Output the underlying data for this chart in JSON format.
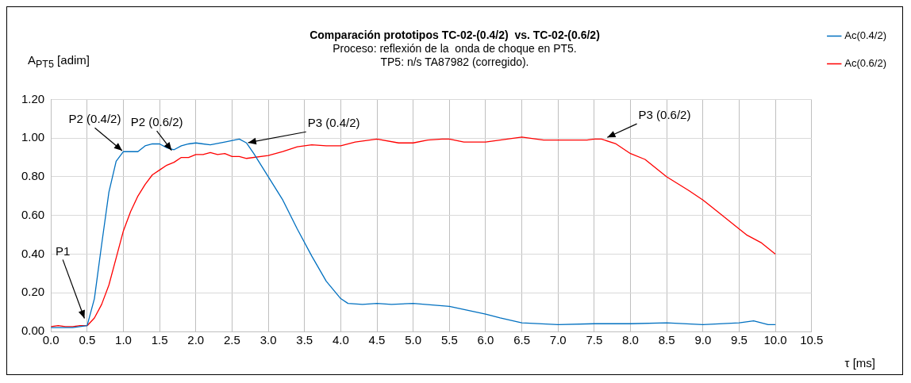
{
  "chart_data": {
    "type": "line",
    "title": "Comparación prototipos TC-02-(0.4/2)  vs. TC-02-(0.6/2)",
    "subtitle": "Proceso: reflexión de la  onda de choque en PT5.\nTP5: n/s TA87982 (corregido).",
    "xlabel": "τ [ms]",
    "ylabel": "A$_{PT5}$ [adim]",
    "series": [
      {
        "name": "Ac(0.4/2)",
        "color": "#0070c0",
        "x": [
          0,
          0.1,
          0.2,
          0.3,
          0.4,
          0.5,
          0.6,
          0.7,
          0.8,
          0.9,
          1.0,
          1.1,
          1.2,
          1.3,
          1.4,
          1.5,
          1.6,
          1.7,
          1.8,
          1.9,
          2.0,
          2.2,
          2.4,
          2.6,
          2.7,
          2.8,
          3.0,
          3.2,
          3.4,
          3.6,
          3.8,
          4.0,
          4.1,
          4.3,
          4.5,
          4.7,
          5.0,
          5.5,
          6.0,
          6.2,
          6.5,
          7.0,
          7.5,
          8.0,
          8.5,
          9.0,
          9.5,
          9.7,
          9.9,
          10.0
        ],
        "values": [
          0.02,
          0.02,
          0.02,
          0.02,
          0.025,
          0.03,
          0.17,
          0.45,
          0.72,
          0.88,
          0.93,
          0.93,
          0.93,
          0.96,
          0.97,
          0.97,
          0.95,
          0.94,
          0.96,
          0.97,
          0.975,
          0.965,
          0.98,
          0.995,
          0.975,
          0.92,
          0.8,
          0.68,
          0.53,
          0.39,
          0.26,
          0.17,
          0.145,
          0.14,
          0.145,
          0.14,
          0.145,
          0.13,
          0.09,
          0.07,
          0.045,
          0.035,
          0.04,
          0.04,
          0.045,
          0.035,
          0.045,
          0.055,
          0.035,
          0.035
        ]
      },
      {
        "name": "Ac(0.6/2)",
        "color": "#ff0000",
        "x": [
          0,
          0.1,
          0.2,
          0.3,
          0.4,
          0.5,
          0.6,
          0.7,
          0.8,
          0.9,
          1.0,
          1.1,
          1.2,
          1.3,
          1.4,
          1.5,
          1.6,
          1.7,
          1.8,
          1.9,
          2.0,
          2.1,
          2.2,
          2.3,
          2.4,
          2.5,
          2.6,
          2.7,
          3.0,
          3.2,
          3.4,
          3.6,
          3.8,
          4.0,
          4.2,
          4.5,
          4.8,
          5.0,
          5.2,
          5.4,
          5.5,
          5.7,
          6.0,
          6.2,
          6.5,
          6.8,
          7.0,
          7.4,
          7.5,
          7.6,
          7.8,
          8.0,
          8.2,
          8.5,
          8.8,
          9.0,
          9.2,
          9.5,
          9.6,
          9.8,
          10.0
        ],
        "values": [
          0.025,
          0.03,
          0.025,
          0.025,
          0.03,
          0.03,
          0.07,
          0.14,
          0.24,
          0.38,
          0.52,
          0.62,
          0.7,
          0.76,
          0.81,
          0.835,
          0.86,
          0.875,
          0.9,
          0.9,
          0.915,
          0.915,
          0.925,
          0.915,
          0.92,
          0.905,
          0.905,
          0.895,
          0.91,
          0.93,
          0.955,
          0.965,
          0.96,
          0.96,
          0.98,
          0.995,
          0.975,
          0.975,
          0.99,
          0.995,
          0.995,
          0.98,
          0.98,
          0.99,
          1.005,
          0.99,
          0.99,
          0.99,
          0.995,
          0.995,
          0.97,
          0.92,
          0.89,
          0.8,
          0.73,
          0.68,
          0.62,
          0.53,
          0.5,
          0.46,
          0.4
        ]
      }
    ],
    "xlim": [
      0,
      10.5
    ],
    "xticks": [
      {
        "value": 0,
        "label": "0.0"
      },
      {
        "value": 0.5,
        "label": "0.5"
      },
      {
        "value": 1,
        "label": "1.0"
      },
      {
        "value": 1.5,
        "label": "1.5"
      },
      {
        "value": 2,
        "label": "2.0"
      },
      {
        "value": 2.5,
        "label": "2.5"
      },
      {
        "value": 3,
        "label": "3.0"
      },
      {
        "value": 3.5,
        "label": "3.5"
      },
      {
        "value": 4,
        "label": "4.0"
      },
      {
        "value": 4.5,
        "label": "4.5"
      },
      {
        "value": 5,
        "label": "5.0"
      },
      {
        "value": 5.5,
        "label": "5.5"
      },
      {
        "value": 6,
        "label": "6.0"
      },
      {
        "value": 6.5,
        "label": "6.5"
      },
      {
        "value": 7,
        "label": "7.0"
      },
      {
        "value": 7.5,
        "label": "7.5"
      },
      {
        "value": 8,
        "label": "8.0"
      },
      {
        "value": 8.5,
        "label": "8.5"
      },
      {
        "value": 9,
        "label": "9.0"
      },
      {
        "value": 9.5,
        "label": "9.5"
      },
      {
        "value": 10,
        "label": "10.0"
      },
      {
        "value": 10.5,
        "label": "10.5"
      }
    ],
    "ylim": [
      0,
      1.2
    ],
    "yticks": [
      {
        "value": 0,
        "label": "0.00"
      },
      {
        "value": 0.2,
        "label": "0.20"
      },
      {
        "value": 0.4,
        "label": "0.40"
      },
      {
        "value": 0.6,
        "label": "0.60"
      },
      {
        "value": 0.8,
        "label": "0.80"
      },
      {
        "value": 1,
        "label": "1.00"
      },
      {
        "value": 1.2,
        "label": "1.20"
      }
    ],
    "annotations": [
      {
        "text": "P1",
        "x": 0.47,
        "y": 0.06
      },
      {
        "text": "P2 (0.4/2)",
        "x": 1.0,
        "y": 0.93
      },
      {
        "text": "P2 (0.6/2)",
        "x": 1.68,
        "y": 0.93
      },
      {
        "text": "P3 (0.4/2)",
        "x": 2.7,
        "y": 0.975
      },
      {
        "text": "P3 (0.6/2)",
        "x": 7.66,
        "y": 1.0
      }
    ],
    "grid": true,
    "legend": "top right",
    "marker": "none",
    "line_style": "solid"
  }
}
